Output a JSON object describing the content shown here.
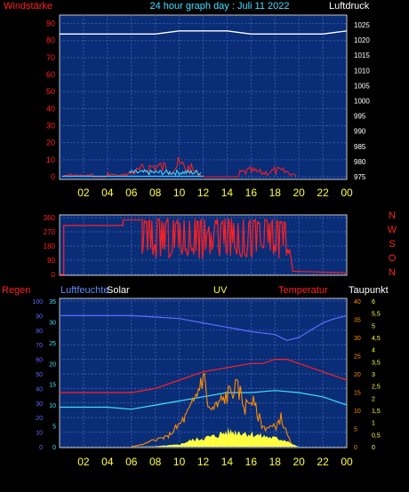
{
  "header": {
    "left_label": "Windstärke",
    "title": "24 hour graph day : Juli 11 2022",
    "right_label": "Luftdruck"
  },
  "x_ticks": [
    "02",
    "04",
    "06",
    "08",
    "10",
    "12",
    "14",
    "16",
    "18",
    "20",
    "22",
    "00"
  ],
  "top": {
    "left_ticks": [
      "0",
      "10",
      "20",
      "30",
      "40",
      "50",
      "60",
      "70",
      "80",
      "90"
    ],
    "right_ticks": [
      "975",
      "980",
      "985",
      "990",
      "995",
      "1000",
      "1005",
      "1010",
      "1015",
      "1020",
      "1025"
    ]
  },
  "mid": {
    "left_ticks": [
      "0",
      "90",
      "180",
      "270",
      "360"
    ],
    "right_ticks": [
      "N",
      "W",
      "S",
      "O",
      "N"
    ]
  },
  "bottom": {
    "labels": {
      "regen": "Regen",
      "luftfeuchte": "Luftfeuchte",
      "solar": "Solar",
      "uv": "UV",
      "temperatur": "Temperatur",
      "taupunkt": "Taupunkt"
    },
    "regen_ticks": [
      "0",
      "10",
      "20",
      "30",
      "40",
      "50",
      "60",
      "70",
      "80",
      "90",
      "100"
    ],
    "temp_ticks": [
      "0",
      "5",
      "10",
      "15",
      "20",
      "25",
      "30",
      "35"
    ],
    "right_red_ticks": [
      "0",
      "5",
      "10",
      "15",
      "20",
      "25",
      "30",
      "35",
      "40"
    ],
    "uv_ticks": [
      "0",
      "0,5",
      "1",
      "1,5",
      "2",
      "2,5",
      "3",
      "3,5",
      "4",
      "4,5",
      "5",
      "5,5",
      "6"
    ]
  },
  "colors": {
    "panel": "#0a2d78",
    "grid": "#3a5aa8",
    "frame": "#c8c8c8",
    "red": "#ff2020",
    "yellow": "#ffff40",
    "cyan": "#40e0ff",
    "blue": "#5f6cff",
    "orange": "#ff8c00",
    "white": "#ffffff"
  },
  "chart_data": [
    {
      "type": "line",
      "x_label_ticks": [
        "02",
        "04",
        "06",
        "08",
        "10",
        "12",
        "14",
        "16",
        "18",
        "20",
        "22",
        "00"
      ],
      "series": [
        {
          "values_hours": [
            0,
            2,
            4,
            6,
            8,
            10,
            12,
            14,
            16,
            18,
            20,
            22,
            24
          ],
          "values": [
            1022,
            1022,
            1022,
            1022,
            1022,
            1023,
            1023,
            1023,
            1022,
            1022,
            1022,
            1022,
            1023
          ]
        },
        {
          "values_hours": [
            0,
            1,
            2,
            4,
            5,
            6,
            7,
            8,
            9,
            10,
            11,
            12,
            15,
            16,
            17,
            18,
            19,
            20,
            24
          ],
          "values": [
            0,
            2,
            1,
            3,
            1,
            4,
            8,
            11,
            9,
            12,
            8,
            0,
            4,
            6,
            4,
            6,
            5,
            0,
            0
          ]
        },
        {
          "values_hours": [
            0,
            6,
            7,
            8,
            9,
            10,
            11,
            12,
            24
          ],
          "values": [
            0,
            1,
            2,
            3,
            3,
            2,
            3,
            0,
            0
          ]
        }
      ],
      "ylim": [
        0,
        95
      ]
    },
    {
      "type": "line",
      "series": [
        {
          "values_hours": [
            0,
            0.3,
            1,
            5,
            5.5,
            6.8,
            7.2,
            7.5,
            8,
            8.5,
            9,
            10,
            11,
            12,
            13,
            14,
            15,
            16,
            17,
            18,
            18.5,
            19,
            20,
            24
          ],
          "values": [
            0,
            310,
            310,
            310,
            350,
            350,
            40,
            340,
            60,
            350,
            300,
            100,
            350,
            120,
            300,
            200,
            320,
            60,
            300,
            100,
            330,
            20,
            0,
            0
          ]
        }
      ],
      "ylim": [
        0,
        360
      ]
    },
    {
      "type": "line",
      "series": [
        {
          "values_hours": [
            0,
            3,
            6,
            8,
            10,
            12,
            14,
            16,
            18,
            19,
            20,
            21,
            22,
            23,
            24
          ],
          "values": [
            90,
            90,
            90,
            89,
            88,
            85,
            82,
            79,
            77,
            73,
            75,
            80,
            85,
            88,
            90
          ]
        },
        {
          "values_hours": [
            0,
            4,
            6,
            8,
            10,
            12,
            14,
            16,
            17,
            18,
            19,
            20,
            22,
            24
          ],
          "values": [
            13,
            13,
            13,
            14,
            16,
            18,
            19,
            20,
            20,
            21,
            21,
            20,
            18,
            16
          ]
        },
        {
          "values_hours": [
            0,
            4,
            6,
            8,
            10,
            12,
            14,
            16,
            18,
            20,
            22,
            24
          ],
          "values": [
            9.5,
            9.5,
            9,
            10,
            11,
            12,
            13,
            13,
            13.5,
            13,
            12,
            10
          ]
        },
        {
          "values_hours": [
            6,
            7,
            8,
            9,
            10,
            10.5,
            11,
            11.5,
            12,
            12.5,
            13,
            14,
            14.5,
            15,
            15.5,
            16,
            17,
            18,
            18.5,
            19,
            19.5
          ],
          "values": [
            0,
            0.1,
            0.3,
            0.4,
            0.9,
            1.2,
            1.6,
            2.2,
            3.0,
            1.5,
            1.6,
            2.1,
            2.4,
            2.3,
            1.6,
            2.0,
            0.8,
            0.8,
            1.2,
            0.5,
            0
          ]
        },
        {
          "values_hours": [
            6,
            8,
            10,
            11,
            12,
            13,
            14,
            15,
            16,
            17,
            18,
            19,
            19.5,
            20
          ],
          "values": [
            0,
            0.2,
            1,
            3,
            4,
            5,
            7,
            7,
            6,
            5,
            4,
            3,
            1,
            0
          ]
        }
      ]
    }
  ]
}
